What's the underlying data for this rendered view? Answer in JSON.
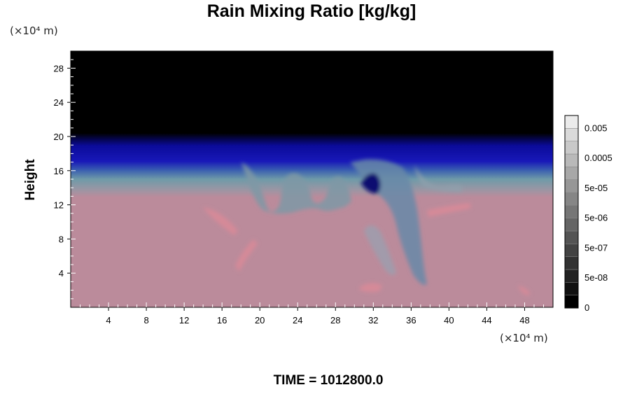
{
  "chart_data": {
    "type": "heatmap",
    "title": "Rain Mixing Ratio [kg/kg]",
    "ylabel": "Height",
    "x_unit_label": "(×10⁴ m)",
    "y_unit_label": "(×10⁴ m)",
    "footer": "TIME = 1012800.0",
    "xlim": [
      0,
      51
    ],
    "ylim": [
      0,
      30
    ],
    "x_ticks": [
      "4",
      "8",
      "12",
      "16",
      "20",
      "24",
      "28",
      "32",
      "36",
      "40",
      "44",
      "48"
    ],
    "y_ticks": [
      "4",
      "8",
      "12",
      "16",
      "20",
      "24",
      "28"
    ],
    "colorbar": {
      "tick_labels": [
        "0",
        "5e-08",
        "5e-07",
        "5e-06",
        "5e-05",
        "0.0005",
        "0.005"
      ],
      "levels": 15
    },
    "regions": [
      {
        "name": "upper",
        "y_range": [
          20,
          30
        ],
        "color": "#000000"
      },
      {
        "name": "blue band",
        "y_range": [
          16,
          20
        ],
        "color": "#0a0a9a"
      },
      {
        "name": "transition",
        "y_range": [
          13,
          16
        ],
        "color": "#6f8ea2"
      },
      {
        "name": "lower",
        "y_range": [
          0,
          13
        ],
        "color": "#bb8b9b"
      }
    ]
  }
}
